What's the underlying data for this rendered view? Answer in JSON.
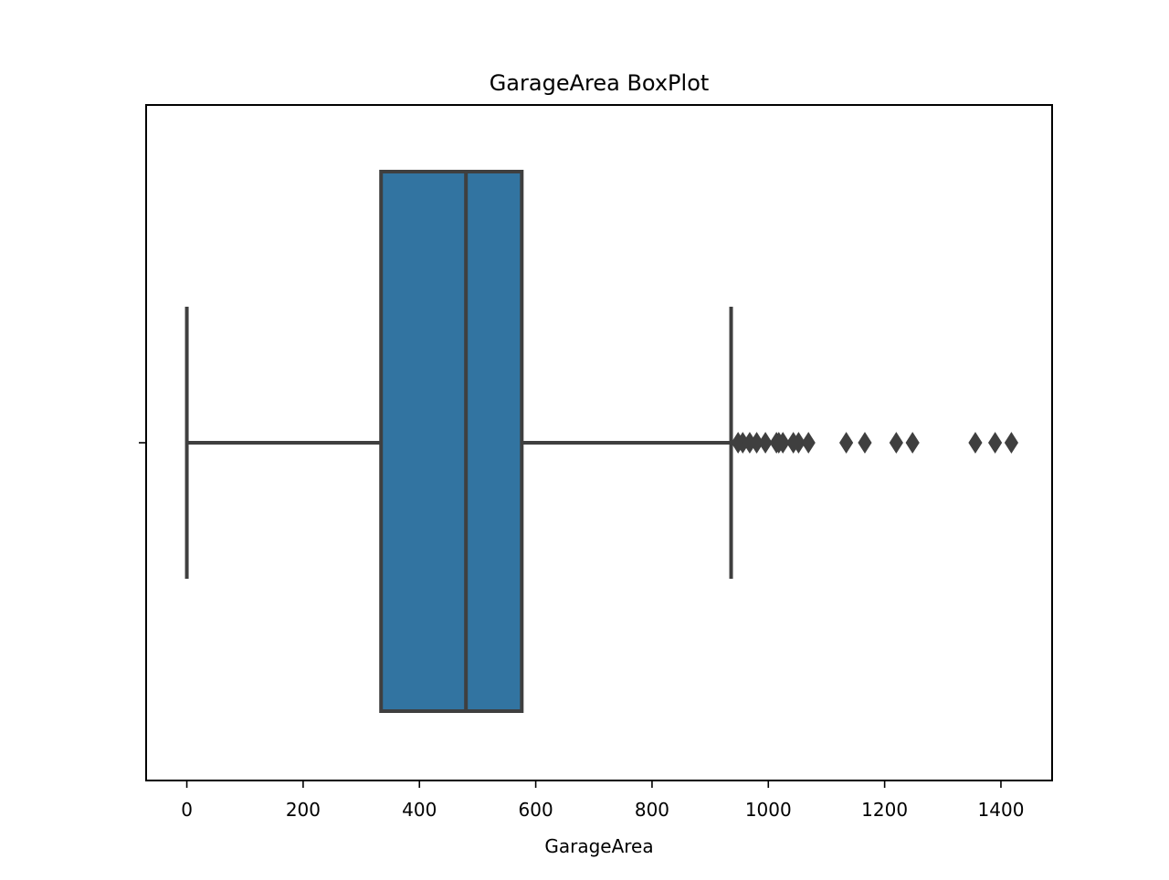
{
  "chart_data": {
    "type": "box",
    "title": "GarageArea BoxPlot",
    "xlabel": "GarageArea",
    "ylabel": "",
    "xlim": [
      -70,
      1488
    ],
    "xticks": [
      0,
      200,
      400,
      600,
      800,
      1000,
      1200,
      1400
    ],
    "xtick_labels": [
      "0",
      "200",
      "400",
      "600",
      "800",
      "1000",
      "1200",
      "1400"
    ],
    "grid": false,
    "box": {
      "whisker_low": 0,
      "q1": 334,
      "median": 480,
      "q3": 576,
      "whisker_high": 936,
      "outliers": [
        948,
        956,
        968,
        980,
        995,
        1014,
        1018,
        1025,
        1043,
        1052,
        1069,
        1134,
        1166,
        1220,
        1248,
        1356,
        1390,
        1418
      ]
    },
    "colors": {
      "box_fill": "#3274a1",
      "line": "#3f3f3f",
      "axes": "#000000"
    }
  }
}
